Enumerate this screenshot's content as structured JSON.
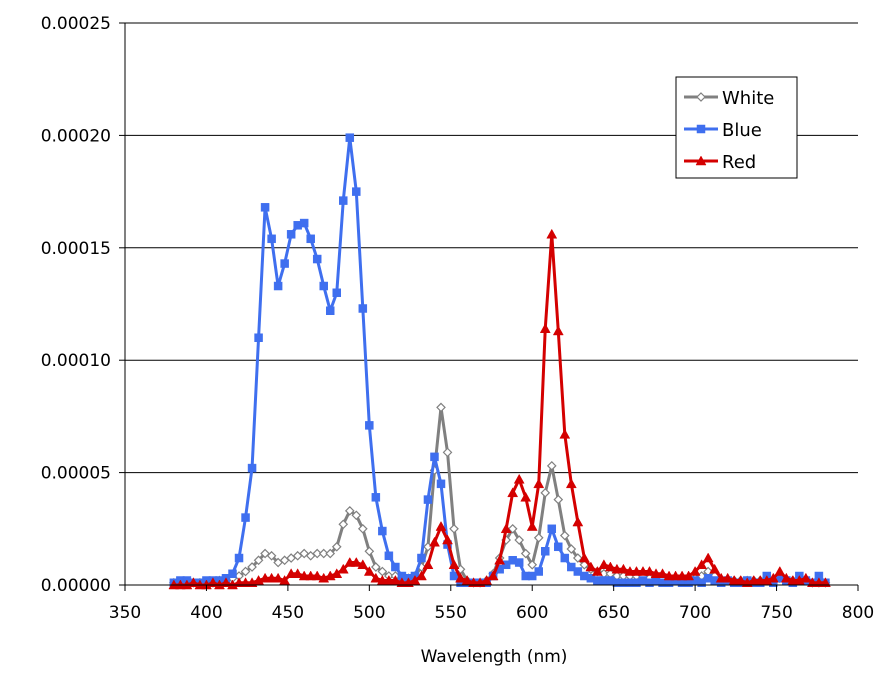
{
  "chart_data": {
    "type": "line",
    "title": "",
    "xlabel": "Wavelength (nm)",
    "ylabel": "",
    "xlim": [
      350,
      800
    ],
    "ylim": [
      0,
      0.00025
    ],
    "x_ticks": [
      "350",
      "400",
      "450",
      "500",
      "550",
      "600",
      "650",
      "700",
      "750",
      "800"
    ],
    "y_ticks": [
      "0.00000",
      "0.00005",
      "0.00010",
      "0.00015",
      "0.00020",
      "0.00025"
    ],
    "grid": "horizontal",
    "legend_position": "top-right",
    "x": [
      380,
      384,
      388,
      392,
      396,
      400,
      404,
      408,
      412,
      416,
      420,
      424,
      428,
      432,
      436,
      440,
      444,
      448,
      452,
      456,
      460,
      464,
      468,
      472,
      476,
      480,
      484,
      488,
      492,
      496,
      500,
      504,
      508,
      512,
      516,
      520,
      524,
      528,
      532,
      536,
      540,
      544,
      548,
      552,
      556,
      560,
      564,
      568,
      572,
      576,
      580,
      584,
      588,
      592,
      596,
      600,
      604,
      608,
      612,
      616,
      620,
      624,
      628,
      632,
      636,
      640,
      644,
      648,
      652,
      656,
      660,
      664,
      668,
      672,
      676,
      680,
      684,
      688,
      692,
      696,
      700,
      704,
      708,
      712,
      716,
      720,
      724,
      728,
      732,
      736,
      740,
      744,
      748,
      752,
      756,
      760,
      764,
      768,
      772,
      776,
      780
    ],
    "series": [
      {
        "name": "White",
        "color": "#808080",
        "marker": "diamond-open",
        "values": [
          1e-06,
          1e-06,
          1e-06,
          1e-06,
          1e-06,
          1e-06,
          1e-06,
          2e-06,
          2e-06,
          3e-06,
          4e-06,
          6e-06,
          8e-06,
          1.1e-05,
          1.4e-05,
          1.3e-05,
          1e-05,
          1.1e-05,
          1.2e-05,
          1.3e-05,
          1.4e-05,
          1.3e-05,
          1.4e-05,
          1.4e-05,
          1.4e-05,
          1.7e-05,
          2.7e-05,
          3.3e-05,
          3.1e-05,
          2.5e-05,
          1.5e-05,
          8e-06,
          6e-06,
          4e-06,
          4e-06,
          3e-06,
          3e-06,
          4e-06,
          8e-06,
          1.7e-05,
          5.1e-05,
          7.9e-05,
          5.9e-05,
          2.5e-05,
          7e-06,
          2e-06,
          1e-06,
          1e-06,
          2e-06,
          5e-06,
          1.2e-05,
          2e-05,
          2.5e-05,
          2e-05,
          1.4e-05,
          9e-06,
          2.1e-05,
          4.1e-05,
          5.3e-05,
          3.8e-05,
          2.2e-05,
          1.6e-05,
          1.2e-05,
          9e-06,
          7e-06,
          6e-06,
          5e-06,
          5e-06,
          4e-06,
          4e-06,
          4e-06,
          4e-06,
          4e-06,
          3e-06,
          3e-06,
          3e-06,
          3e-06,
          3e-06,
          2e-06,
          2e-06,
          3e-06,
          4e-06,
          6e-06,
          4e-06,
          2e-06,
          2e-06,
          2e-06,
          2e-06,
          2e-06,
          2e-06,
          2e-06,
          2e-06,
          2e-06,
          3e-06,
          2e-06,
          2e-06,
          2e-06,
          2e-06,
          1e-06,
          1e-06,
          1e-06
        ]
      },
      {
        "name": "Blue",
        "color": "#3f6fef",
        "marker": "square",
        "values": [
          1e-06,
          2e-06,
          2e-06,
          1e-06,
          1e-06,
          2e-06,
          2e-06,
          2e-06,
          3e-06,
          5e-06,
          1.2e-05,
          3e-05,
          5.2e-05,
          0.00011,
          0.000168,
          0.000154,
          0.000133,
          0.000143,
          0.000156,
          0.00016,
          0.000161,
          0.000154,
          0.000145,
          0.000133,
          0.000122,
          0.00013,
          0.000171,
          0.000199,
          0.000175,
          0.000123,
          7.1e-05,
          3.9e-05,
          2.4e-05,
          1.3e-05,
          8e-06,
          4e-06,
          3e-06,
          4e-06,
          1.2e-05,
          3.8e-05,
          5.7e-05,
          4.5e-05,
          1.8e-05,
          4e-06,
          1e-06,
          1e-06,
          1e-06,
          1e-06,
          1e-06,
          4e-06,
          7e-06,
          9e-06,
          1.1e-05,
          1e-05,
          4e-06,
          4e-06,
          6e-06,
          1.5e-05,
          2.5e-05,
          1.7e-05,
          1.2e-05,
          8e-06,
          6e-06,
          4e-06,
          3e-06,
          2e-06,
          2e-06,
          2e-06,
          1e-06,
          1e-06,
          1e-06,
          1e-06,
          2e-06,
          1e-06,
          2e-06,
          1e-06,
          1e-06,
          2e-06,
          1e-06,
          1e-06,
          2e-06,
          1e-06,
          3e-06,
          2e-06,
          1e-06,
          2e-06,
          1e-06,
          1e-06,
          2e-06,
          1e-06,
          1e-06,
          4e-06,
          1e-06,
          3e-06,
          2e-06,
          1e-06,
          4e-06,
          2e-06,
          1e-06,
          4e-06,
          1e-06
        ]
      },
      {
        "name": "Red",
        "color": "#d40000",
        "marker": "triangle",
        "values": [
          0.0,
          0.0,
          0.0,
          1e-06,
          0.0,
          0.0,
          1e-06,
          0.0,
          1e-06,
          0.0,
          1e-06,
          1e-06,
          1e-06,
          2e-06,
          3e-06,
          3e-06,
          3e-06,
          2e-06,
          5e-06,
          5e-06,
          4e-06,
          4e-06,
          4e-06,
          3e-06,
          4e-06,
          5e-06,
          7e-06,
          1e-05,
          1e-05,
          9e-06,
          6e-06,
          3e-06,
          2e-06,
          2e-06,
          2e-06,
          1e-06,
          1e-06,
          2e-06,
          4e-06,
          9e-06,
          1.9e-05,
          2.6e-05,
          2e-05,
          9e-06,
          3e-06,
          2e-06,
          1e-06,
          1e-06,
          2e-06,
          4e-06,
          1.1e-05,
          2.5e-05,
          4.1e-05,
          4.7e-05,
          3.9e-05,
          2.6e-05,
          4.5e-05,
          0.000114,
          0.000156,
          0.000113,
          6.7e-05,
          4.5e-05,
          2.8e-05,
          1.2e-05,
          8e-06,
          6e-06,
          9e-06,
          8e-06,
          7e-06,
          7e-06,
          6e-06,
          6e-06,
          6e-06,
          6e-06,
          5e-06,
          5e-06,
          4e-06,
          4e-06,
          4e-06,
          4e-06,
          6e-06,
          9e-06,
          1.2e-05,
          7e-06,
          3e-06,
          3e-06,
          2e-06,
          2e-06,
          1e-06,
          2e-06,
          2e-06,
          2e-06,
          3e-06,
          6e-06,
          3e-06,
          2e-06,
          2e-06,
          3e-06,
          1e-06,
          1e-06,
          1e-06
        ]
      }
    ]
  }
}
